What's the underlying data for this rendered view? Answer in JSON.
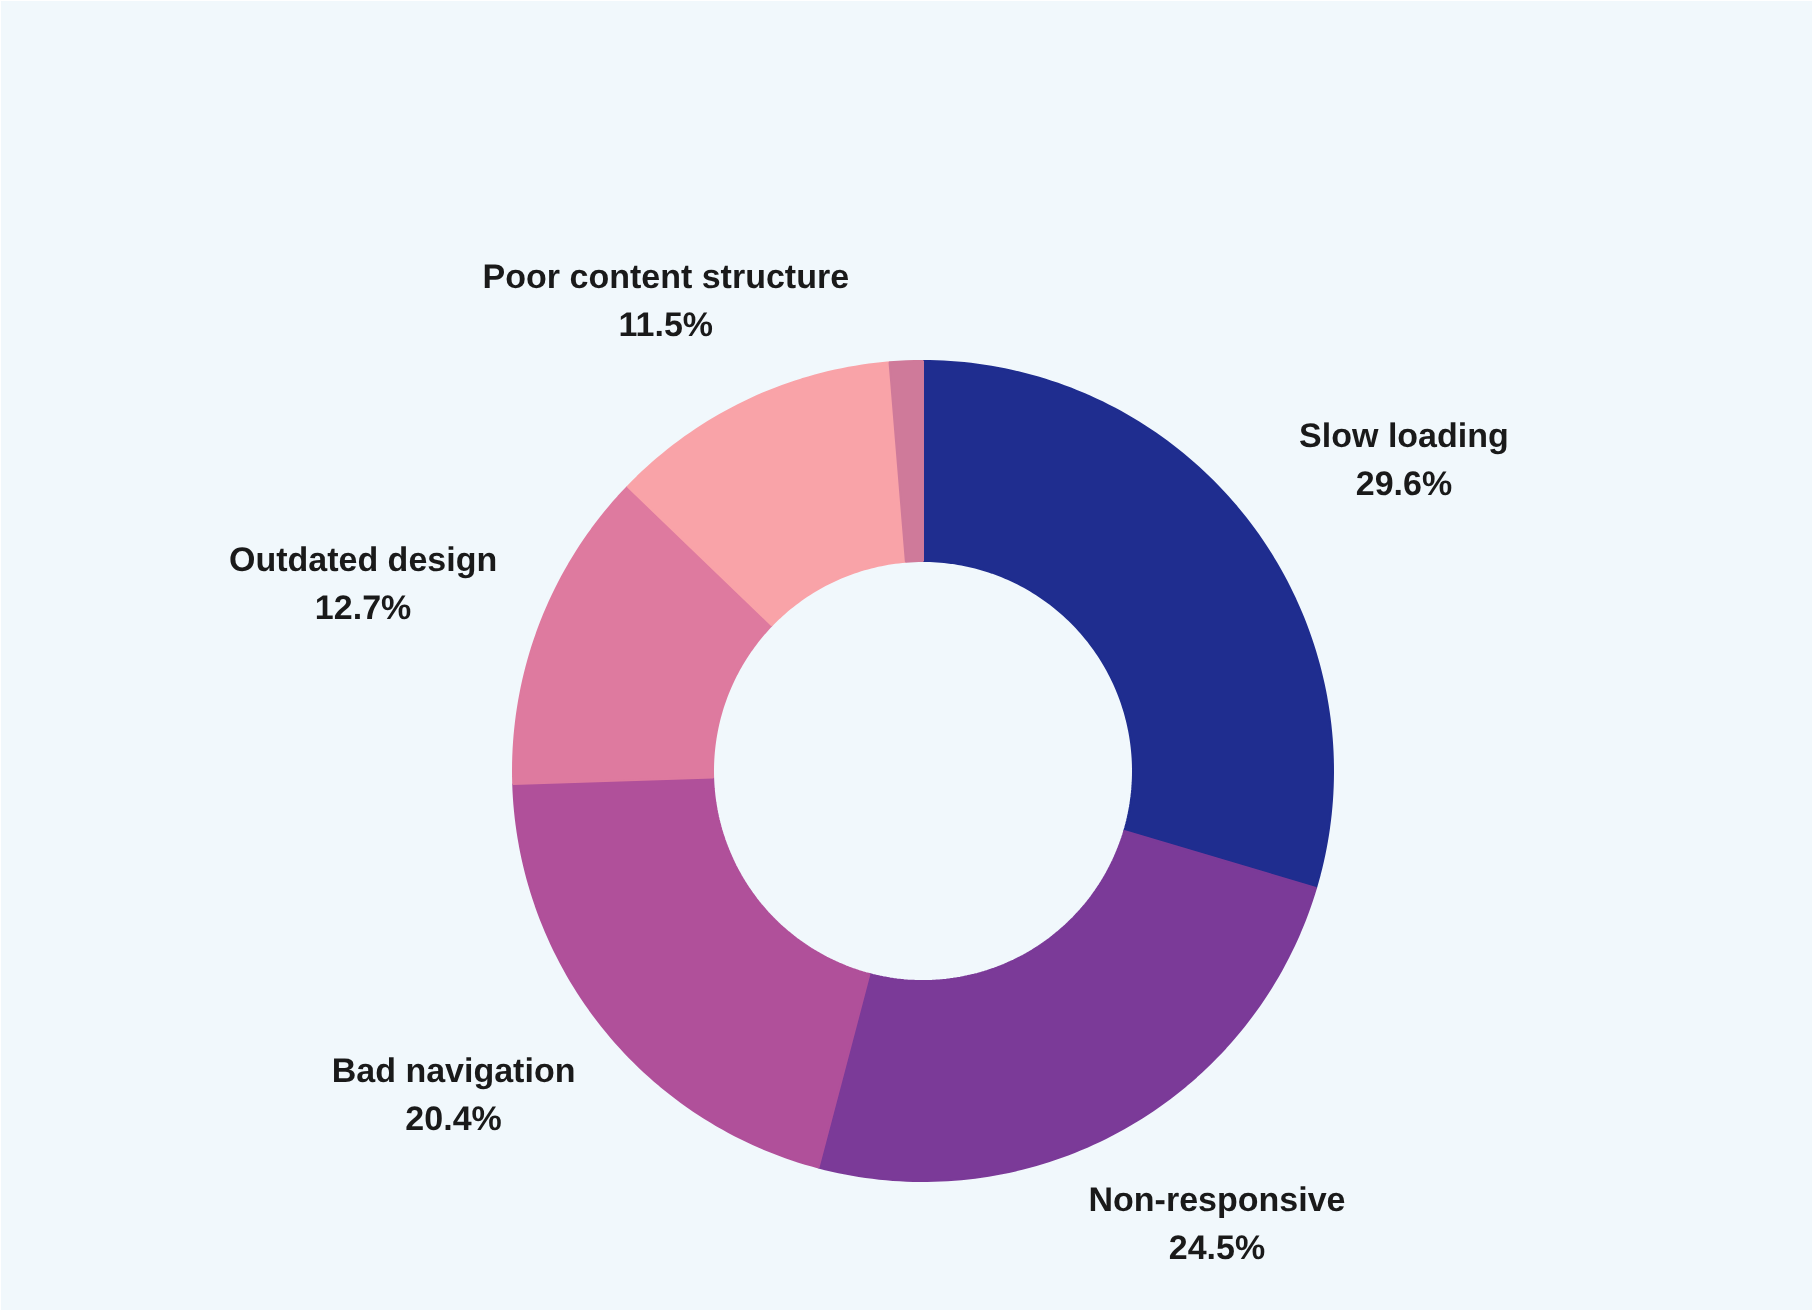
{
  "chart_data": {
    "type": "donut",
    "categories": [
      "Slow loading",
      "Non-responsive",
      "Bad navigation",
      "Outdated design",
      "Poor content structure",
      null
    ],
    "values": [
      29.6,
      24.5,
      20.4,
      12.7,
      11.5,
      1.3
    ],
    "colors": [
      "#1f2d8f",
      "#7b3a98",
      "#b0509a",
      "#de7a9f",
      "#f9a3a8",
      "#cf7a9a"
    ],
    "value_labels": [
      "29.6%",
      "24.5%",
      "20.4%",
      "12.7%",
      "11.5%",
      null
    ]
  }
}
